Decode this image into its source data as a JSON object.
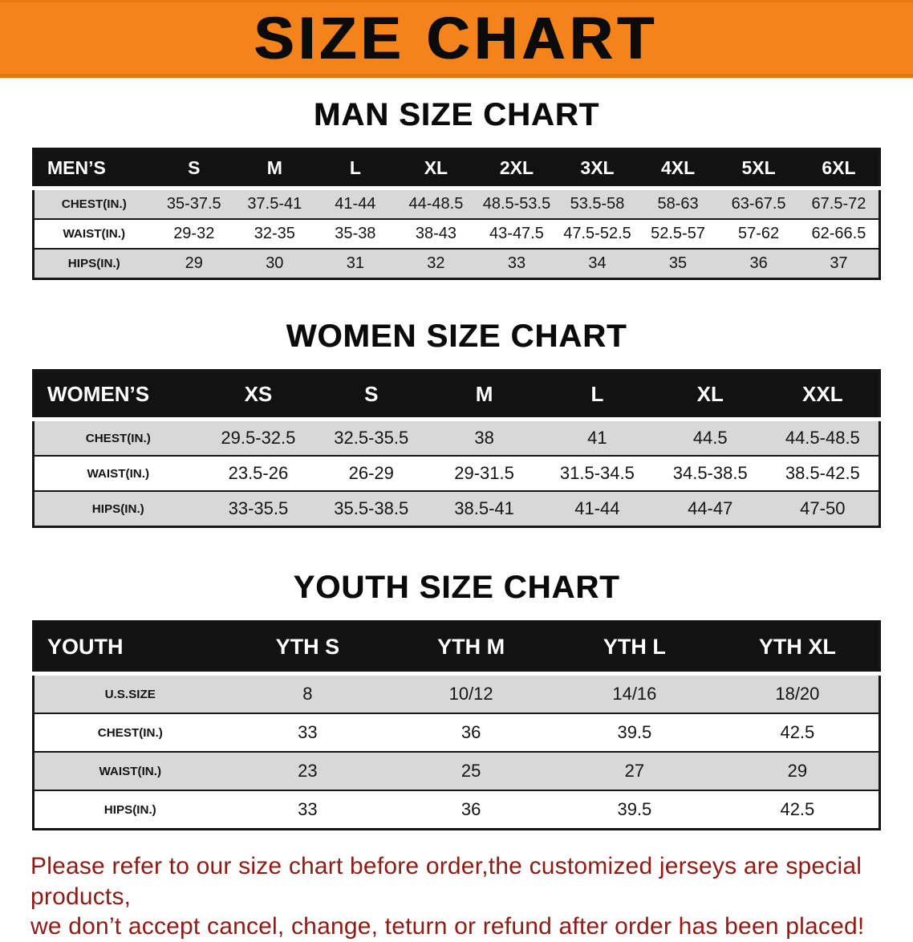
{
  "banner": {
    "title": "SIZE CHART"
  },
  "sections": [
    {
      "id": "men",
      "title": "MAN SIZE CHART",
      "table": {
        "header": [
          "MEN’S",
          "S",
          "M",
          "L",
          "XL",
          "2XL",
          "3XL",
          "4XL",
          "5XL",
          "6XL"
        ],
        "rows": [
          {
            "label": "CHEST(IN.)",
            "values": [
              "35-37.5",
              "37.5-41",
              "41-44",
              "44-48.5",
              "48.5-53.5",
              "53.5-58",
              "58-63",
              "63-67.5",
              "67.5-72"
            ]
          },
          {
            "label": "WAIST(IN.)",
            "values": [
              "29-32",
              "32-35",
              "35-38",
              "38-43",
              "43-47.5",
              "47.5-52.5",
              "52.5-57",
              "57-62",
              "62-66.5"
            ]
          },
          {
            "label": "HIPS(IN.)",
            "values": [
              "29",
              "30",
              "31",
              "32",
              "33",
              "34",
              "35",
              "36",
              "37"
            ]
          }
        ]
      }
    },
    {
      "id": "women",
      "title": "WOMEN SIZE CHART",
      "table": {
        "header": [
          "WOMEN’S",
          "XS",
          "S",
          "M",
          "L",
          "XL",
          "XXL"
        ],
        "rows": [
          {
            "label": "CHEST(IN.)",
            "values": [
              "29.5-32.5",
              "32.5-35.5",
              "38",
              "41",
              "44.5",
              "44.5-48.5"
            ]
          },
          {
            "label": "WAIST(IN.)",
            "values": [
              "23.5-26",
              "26-29",
              "29-31.5",
              "31.5-34.5",
              "34.5-38.5",
              "38.5-42.5"
            ]
          },
          {
            "label": "HIPS(IN.)",
            "values": [
              "33-35.5",
              "35.5-38.5",
              "38.5-41",
              "41-44",
              "44-47",
              "47-50"
            ]
          }
        ]
      }
    },
    {
      "id": "youth",
      "title": "YOUTH SIZE CHART",
      "table": {
        "header": [
          "YOUTH",
          "YTH S",
          "YTH M",
          "YTH L",
          "YTH XL"
        ],
        "rows": [
          {
            "label": "U.S.SIZE",
            "values": [
              "8",
              "10/12",
              "14/16",
              "18/20"
            ]
          },
          {
            "label": "CHEST(IN.)",
            "values": [
              "33",
              "36",
              "39.5",
              "42.5"
            ]
          },
          {
            "label": "WAIST(IN.)",
            "values": [
              "23",
              "25",
              "27",
              "29"
            ]
          },
          {
            "label": "HIPS(IN.)",
            "values": [
              "33",
              "36",
              "39.5",
              "42.5"
            ]
          }
        ]
      }
    }
  ],
  "footer": {
    "line1": "Please refer to our size chart before order,the customized jerseys are special products,",
    "line2": "we don’t accept cancel, change, teturn or refund after order has been placed!"
  },
  "colors": {
    "banner_orange": "#F5831C",
    "header_black": "#121212",
    "row_shade": "#d8d8d8",
    "notice_red": "#8F1B14"
  }
}
